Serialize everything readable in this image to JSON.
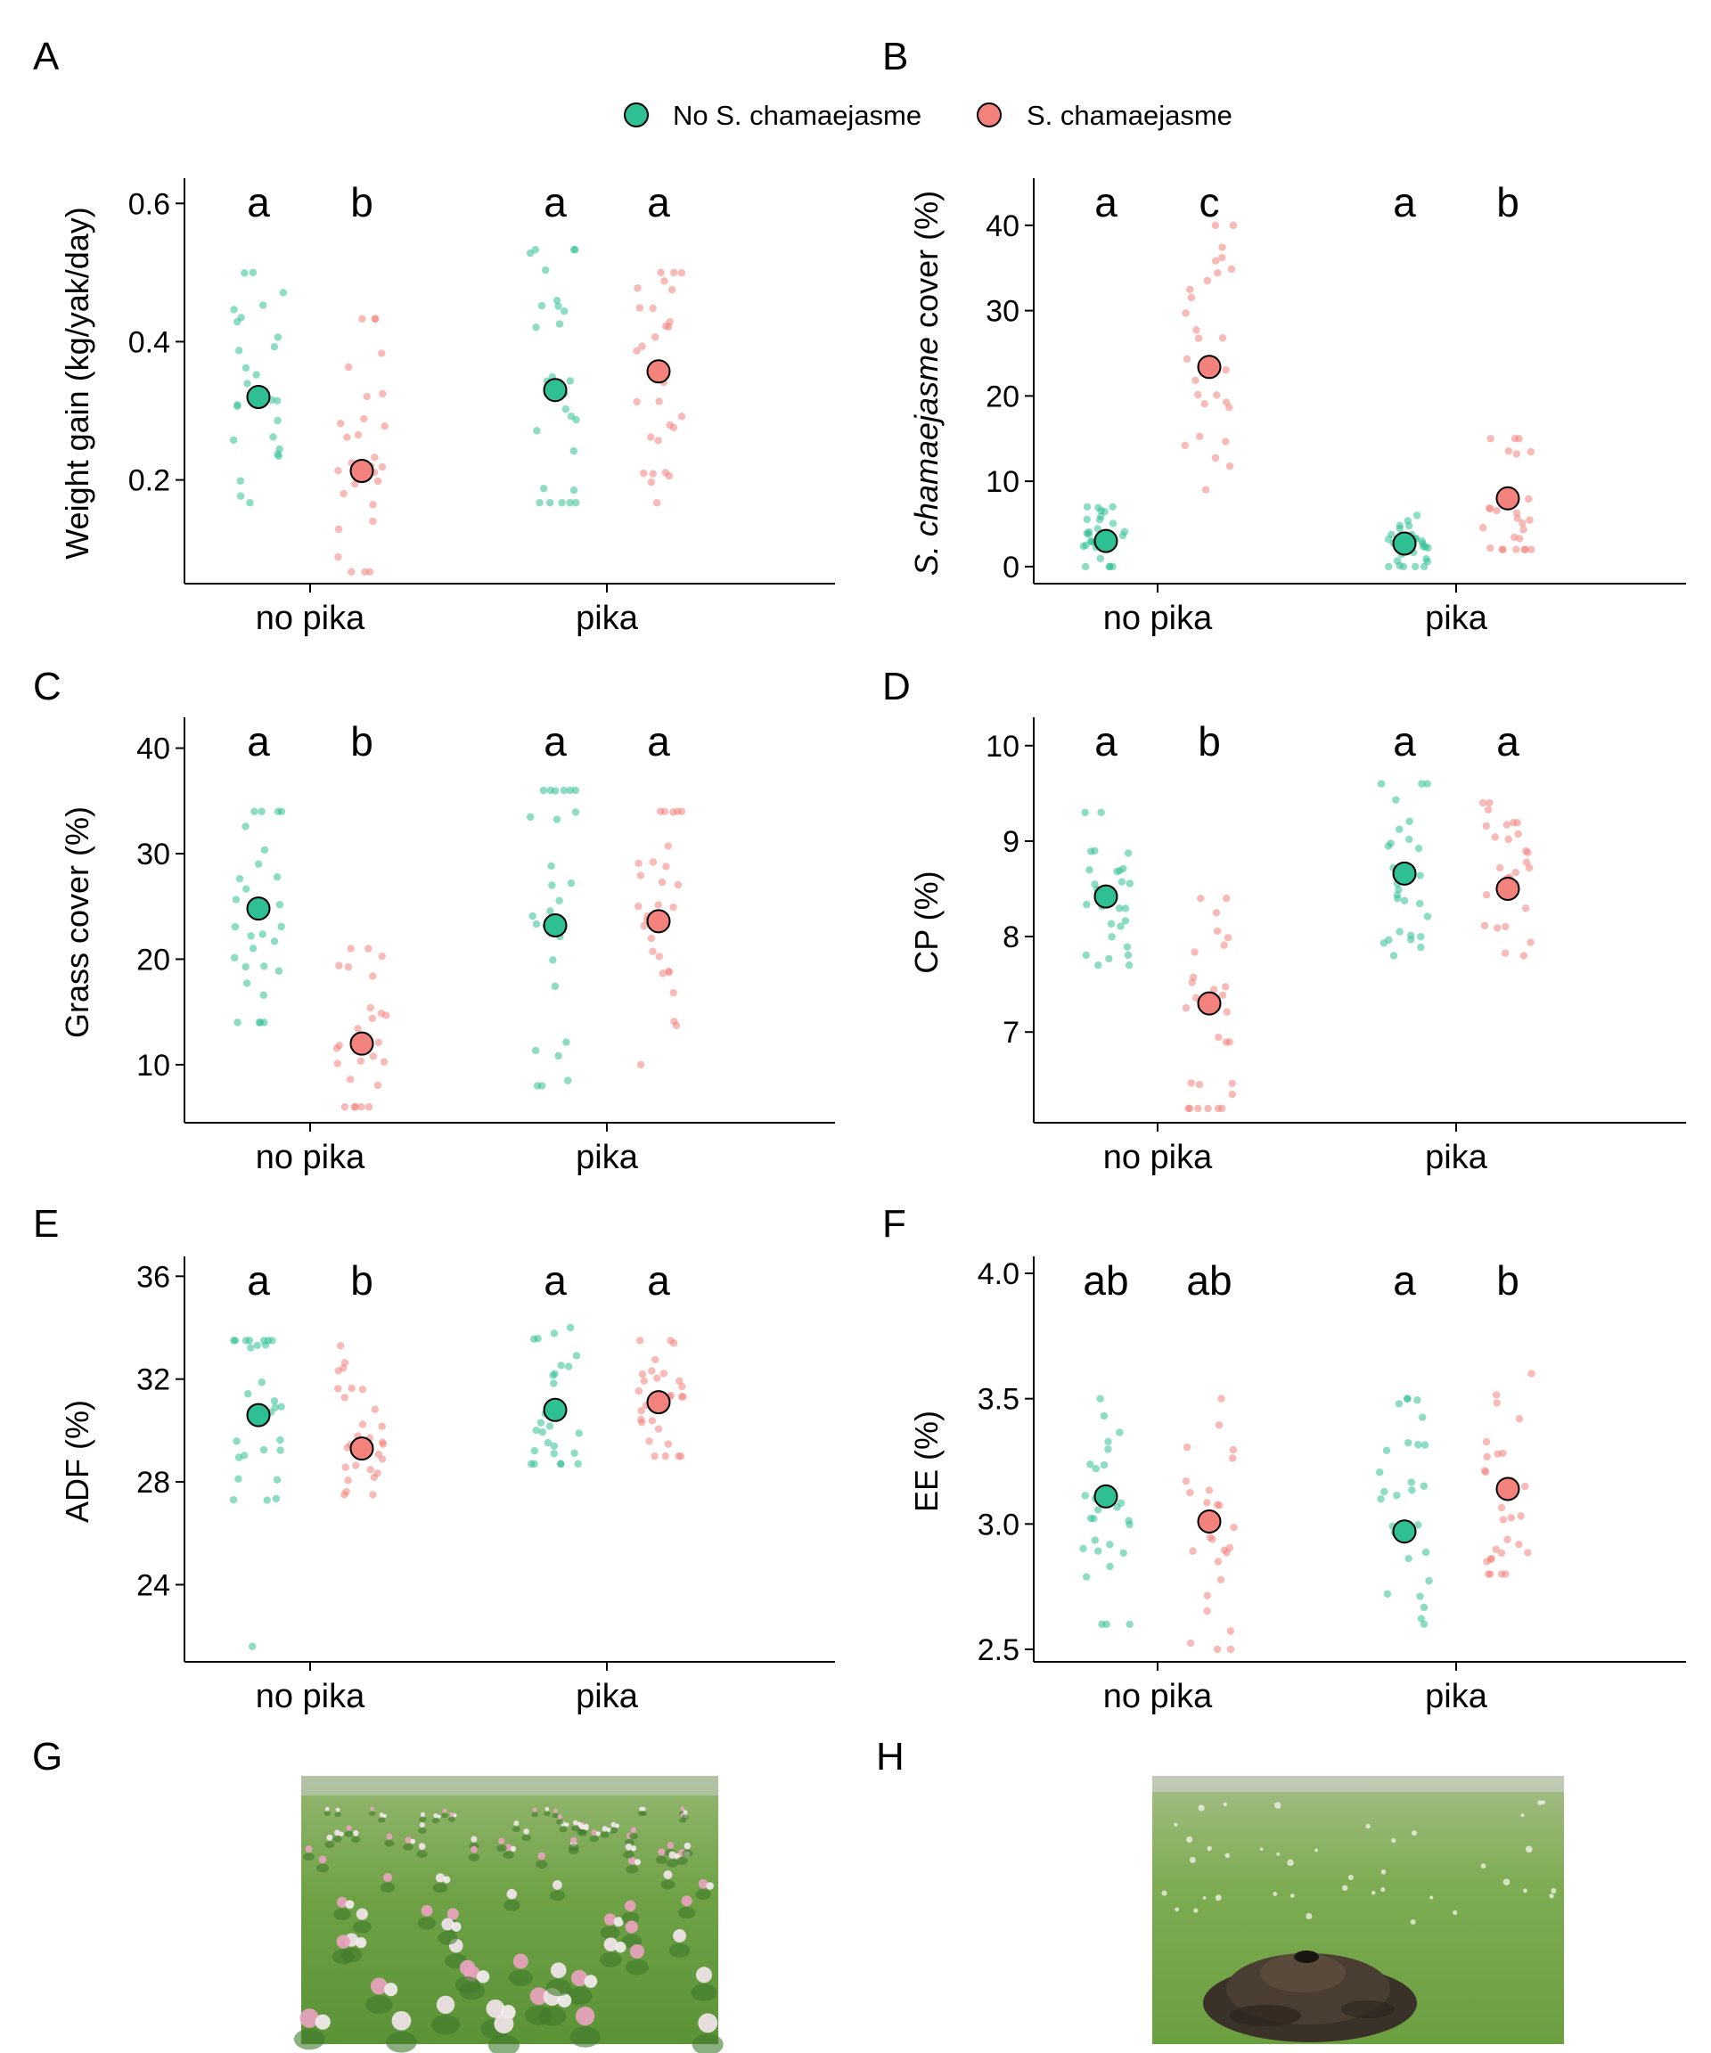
{
  "legend": {
    "items": [
      {
        "label": "No S. chamaejasme",
        "color": "#2fbf94"
      },
      {
        "label": "S. chamaejasme",
        "color": "#f3817c"
      }
    ]
  },
  "chart_data": [
    {
      "panel": "A",
      "type": "scatter",
      "ylabel": "Weight gain (kg/yak/day)",
      "categories": [
        "no pika",
        "pika"
      ],
      "yticks": [
        0.2,
        0.4,
        0.6
      ],
      "ylim": [
        0.05,
        0.63
      ],
      "significance": [
        "a",
        "b",
        "a",
        "a"
      ],
      "series": [
        {
          "name": "No S. chamaejasme",
          "means": [
            0.32,
            0.33
          ],
          "ranges": [
            [
              0.167,
              0.5
            ],
            [
              0.167,
              0.533
            ]
          ]
        },
        {
          "name": "S. chamaejasme",
          "means": [
            0.213,
            0.357
          ],
          "ranges": [
            [
              0.067,
              0.433
            ],
            [
              0.167,
              0.5
            ]
          ]
        }
      ]
    },
    {
      "panel": "B",
      "type": "scatter",
      "ylabel_italic": "S. chamaejasme",
      "ylabel_rest": " cover (%)",
      "categories": [
        "no pika",
        "pika"
      ],
      "yticks": [
        0,
        10,
        20,
        30,
        40
      ],
      "ylim": [
        -2,
        45
      ],
      "significance": [
        "a",
        "c",
        "a",
        "b"
      ],
      "series": [
        {
          "name": "No S. chamaejasme",
          "means": [
            3,
            2.7
          ],
          "ranges": [
            [
              0,
              7
            ],
            [
              0,
              6
            ]
          ]
        },
        {
          "name": "S. chamaejasme",
          "means": [
            23.4,
            8
          ],
          "ranges": [
            [
              9,
              40
            ],
            [
              2,
              15
            ]
          ]
        }
      ]
    },
    {
      "panel": "C",
      "type": "scatter",
      "ylabel": "Grass cover (%)",
      "categories": [
        "no pika",
        "pika"
      ],
      "yticks": [
        10,
        20,
        30,
        40
      ],
      "ylim": [
        4.5,
        42.5
      ],
      "significance": [
        "a",
        "b",
        "a",
        "a"
      ],
      "series": [
        {
          "name": "No S. chamaejasme",
          "means": [
            24.8,
            23.2
          ],
          "ranges": [
            [
              14,
              34
            ],
            [
              8,
              36
            ]
          ]
        },
        {
          "name": "S. chamaejasme",
          "means": [
            12,
            23.6
          ],
          "ranges": [
            [
              6,
              21
            ],
            [
              10,
              34
            ]
          ]
        }
      ]
    },
    {
      "panel": "D",
      "type": "scatter",
      "ylabel": "CP (%)",
      "categories": [
        "no pika",
        "pika"
      ],
      "yticks": [
        7,
        8,
        9,
        10
      ],
      "ylim": [
        6.05,
        10.25
      ],
      "significance": [
        "a",
        "b",
        "a",
        "a"
      ],
      "series": [
        {
          "name": "No S. chamaejasme",
          "means": [
            8.42,
            8.66
          ],
          "ranges": [
            [
              7.7,
              9.3
            ],
            [
              7.8,
              9.6
            ]
          ]
        },
        {
          "name": "S. chamaejasme",
          "means": [
            7.3,
            8.5
          ],
          "ranges": [
            [
              6.2,
              8.4
            ],
            [
              7.8,
              9.4
            ]
          ]
        }
      ]
    },
    {
      "panel": "E",
      "type": "scatter",
      "ylabel": "ADF (%)",
      "categories": [
        "no pika",
        "pika"
      ],
      "yticks": [
        24,
        28,
        32,
        36
      ],
      "ylim": [
        21,
        36.6
      ],
      "significance": [
        "a",
        "b",
        "a",
        "a"
      ],
      "series": [
        {
          "name": "No S. chamaejasme",
          "means": [
            30.6,
            30.8
          ],
          "ranges": [
            [
              21.6,
              33.5
            ],
            [
              28.7,
              34
            ]
          ]
        },
        {
          "name": "S. chamaejasme",
          "means": [
            29.3,
            31.1
          ],
          "ranges": [
            [
              27.5,
              33.3
            ],
            [
              29,
              33.5
            ]
          ]
        }
      ]
    },
    {
      "panel": "F",
      "type": "scatter",
      "ylabel": "EE (%)",
      "categories": [
        "no pika",
        "pika"
      ],
      "yticks": [
        2.5,
        3.0,
        3.5,
        4.0
      ],
      "ylim": [
        2.45,
        4.05
      ],
      "significance": [
        "ab",
        "ab",
        "a",
        "b"
      ],
      "series": [
        {
          "name": "No S. chamaejasme",
          "means": [
            3.11,
            2.97
          ],
          "ranges": [
            [
              2.6,
              3.5
            ],
            [
              2.6,
              3.5
            ]
          ]
        },
        {
          "name": "S. chamaejasme",
          "means": [
            3.01,
            3.14
          ],
          "ranges": [
            [
              2.5,
              3.5
            ],
            [
              2.8,
              3.6
            ]
          ]
        }
      ]
    }
  ],
  "photos": [
    {
      "label": "G",
      "subject": "meadow-with-s-chamaejasme"
    },
    {
      "label": "H",
      "subject": "pika-burrow-mound"
    }
  ]
}
